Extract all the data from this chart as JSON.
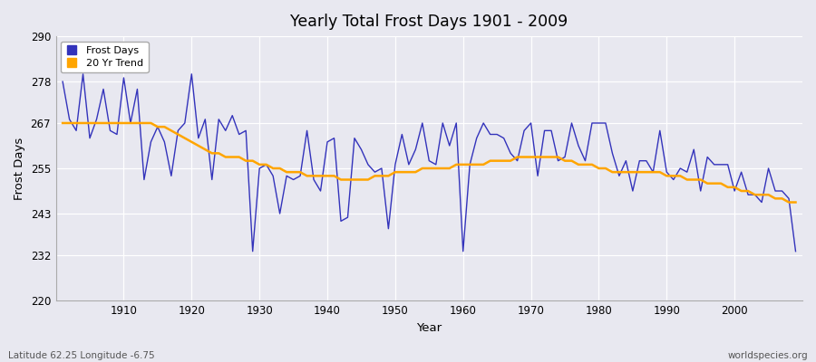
{
  "title": "Yearly Total Frost Days 1901 - 2009",
  "xlabel": "Year",
  "ylabel": "Frost Days",
  "lat_lon_label": "Latitude 62.25 Longitude -6.75",
  "watermark": "worldspecies.org",
  "years": [
    1901,
    1902,
    1903,
    1904,
    1905,
    1906,
    1907,
    1908,
    1909,
    1910,
    1911,
    1912,
    1913,
    1914,
    1915,
    1916,
    1917,
    1918,
    1919,
    1920,
    1921,
    1922,
    1923,
    1924,
    1925,
    1926,
    1927,
    1928,
    1929,
    1930,
    1931,
    1932,
    1933,
    1934,
    1935,
    1936,
    1937,
    1938,
    1939,
    1940,
    1941,
    1942,
    1943,
    1944,
    1945,
    1946,
    1947,
    1948,
    1949,
    1950,
    1951,
    1952,
    1953,
    1954,
    1955,
    1956,
    1957,
    1958,
    1959,
    1960,
    1961,
    1962,
    1963,
    1964,
    1965,
    1966,
    1967,
    1968,
    1969,
    1970,
    1971,
    1972,
    1973,
    1974,
    1975,
    1976,
    1977,
    1978,
    1979,
    1980,
    1981,
    1982,
    1983,
    1984,
    1985,
    1986,
    1987,
    1988,
    1989,
    1990,
    1991,
    1992,
    1993,
    1994,
    1995,
    1996,
    1997,
    1998,
    1999,
    2000,
    2001,
    2002,
    2003,
    2004,
    2005,
    2006,
    2007,
    2008,
    2009
  ],
  "frost_days": [
    278,
    268,
    265,
    280,
    263,
    268,
    276,
    265,
    264,
    279,
    267,
    276,
    252,
    262,
    266,
    262,
    253,
    265,
    267,
    280,
    263,
    268,
    252,
    268,
    265,
    269,
    264,
    265,
    233,
    255,
    256,
    253,
    243,
    253,
    252,
    253,
    265,
    252,
    249,
    262,
    263,
    241,
    242,
    263,
    260,
    256,
    254,
    255,
    239,
    256,
    264,
    256,
    260,
    267,
    257,
    256,
    267,
    261,
    267,
    233,
    256,
    263,
    267,
    264,
    264,
    263,
    259,
    257,
    265,
    267,
    253,
    265,
    265,
    257,
    258,
    267,
    261,
    257,
    267,
    267,
    267,
    259,
    253,
    257,
    249,
    257,
    257,
    254,
    265,
    254,
    252,
    255,
    254,
    260,
    249,
    258,
    256,
    256,
    256,
    249,
    254,
    248,
    248,
    246,
    255,
    249,
    249,
    247,
    233
  ],
  "trend_years": [
    1901,
    1902,
    1903,
    1904,
    1905,
    1906,
    1907,
    1908,
    1909,
    1910,
    1911,
    1912,
    1913,
    1914,
    1915,
    1916,
    1917,
    1918,
    1919,
    1920,
    1921,
    1922,
    1923,
    1924,
    1925,
    1926,
    1927,
    1928,
    1929,
    1930,
    1931,
    1932,
    1933,
    1934,
    1935,
    1936,
    1937,
    1938,
    1939,
    1940,
    1941,
    1942,
    1943,
    1944,
    1945,
    1946,
    1947,
    1948,
    1949,
    1950,
    1951,
    1952,
    1953,
    1954,
    1955,
    1956,
    1957,
    1958,
    1959,
    1960,
    1961,
    1962,
    1963,
    1964,
    1965,
    1966,
    1967,
    1968,
    1969,
    1970,
    1971,
    1972,
    1973,
    1974,
    1975,
    1976,
    1977,
    1978,
    1979,
    1980,
    1981,
    1982,
    1983,
    1984,
    1985,
    1986,
    1987,
    1988,
    1989,
    1990,
    1991,
    1992,
    1993,
    1994,
    1995,
    1996,
    1997,
    1998,
    1999,
    2000,
    2001,
    2002,
    2003,
    2004,
    2005,
    2006,
    2007,
    2008,
    2009
  ],
  "trend_values": [
    267,
    267,
    267,
    267,
    267,
    267,
    267,
    267,
    267,
    267,
    267,
    267,
    267,
    267,
    266,
    266,
    265,
    264,
    263,
    262,
    261,
    260,
    259,
    259,
    258,
    258,
    258,
    257,
    257,
    256,
    256,
    255,
    255,
    254,
    254,
    254,
    253,
    253,
    253,
    253,
    253,
    252,
    252,
    252,
    252,
    252,
    253,
    253,
    253,
    254,
    254,
    254,
    254,
    255,
    255,
    255,
    255,
    255,
    256,
    256,
    256,
    256,
    256,
    257,
    257,
    257,
    257,
    258,
    258,
    258,
    258,
    258,
    258,
    258,
    257,
    257,
    256,
    256,
    256,
    255,
    255,
    254,
    254,
    254,
    254,
    254,
    254,
    254,
    254,
    253,
    253,
    253,
    252,
    252,
    252,
    251,
    251,
    251,
    250,
    250,
    249,
    249,
    248,
    248,
    248,
    247,
    247,
    246,
    246
  ],
  "line_color": "#3333bb",
  "trend_color": "#FFA500",
  "bg_color": "#e8e8f0",
  "grid_color": "#d0d0e0",
  "ylim": [
    220,
    290
  ],
  "yticks": [
    220,
    232,
    243,
    255,
    267,
    278,
    290
  ],
  "xlim": [
    1900,
    2010
  ],
  "xticks": [
    1910,
    1920,
    1930,
    1940,
    1950,
    1960,
    1970,
    1980,
    1990,
    2000
  ]
}
